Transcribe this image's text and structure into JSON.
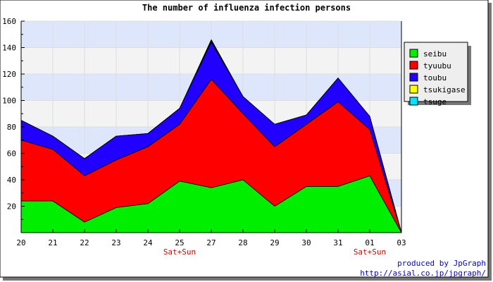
{
  "chart_data": {
    "type": "area",
    "stacked": true,
    "title": "The number of influenza infection persons",
    "xlabel": "",
    "ylabel": "",
    "ylim": [
      0,
      160
    ],
    "yticks": [
      20,
      40,
      60,
      80,
      100,
      120,
      140,
      160
    ],
    "categories": [
      "20",
      "21",
      "22",
      "23",
      "24",
      "25",
      "27",
      "28",
      "29",
      "30",
      "31",
      "01",
      "03"
    ],
    "category_notes": [
      {
        "category": "25",
        "text": "Sat+Sun"
      },
      {
        "category": "01",
        "text": "Sat+Sun"
      }
    ],
    "grid": true,
    "background_bands": [
      "#dde6fb",
      "#f3f3f3"
    ],
    "legend_position": "right",
    "series": [
      {
        "name": "seibu",
        "color": "#00ee00",
        "values": [
          24,
          24,
          8,
          19,
          22,
          39,
          34,
          40,
          20,
          35,
          35,
          43,
          0
        ]
      },
      {
        "name": "tyuubu",
        "color": "#ff0000",
        "values": [
          46,
          39,
          35,
          36,
          43,
          43,
          82,
          50,
          45,
          47,
          64,
          35,
          0
        ]
      },
      {
        "name": "toubu",
        "color": "#2200ff",
        "values": [
          15,
          10,
          13,
          18,
          10,
          12,
          28,
          13,
          17,
          7,
          18,
          10,
          0
        ]
      },
      {
        "name": "tsukigase",
        "color": "#ffff00",
        "values": [
          0,
          0,
          0,
          0,
          0,
          0,
          1,
          0,
          0,
          0,
          0,
          0,
          0
        ]
      },
      {
        "name": "tsuge",
        "color": "#00e5ff",
        "values": [
          0,
          0,
          0,
          0,
          0,
          0,
          1,
          0,
          0,
          0,
          0,
          0,
          0
        ]
      }
    ]
  },
  "credit": {
    "line1": "produced by JpGraph",
    "line2": "http://asial.co.jp/jpgraph/"
  }
}
